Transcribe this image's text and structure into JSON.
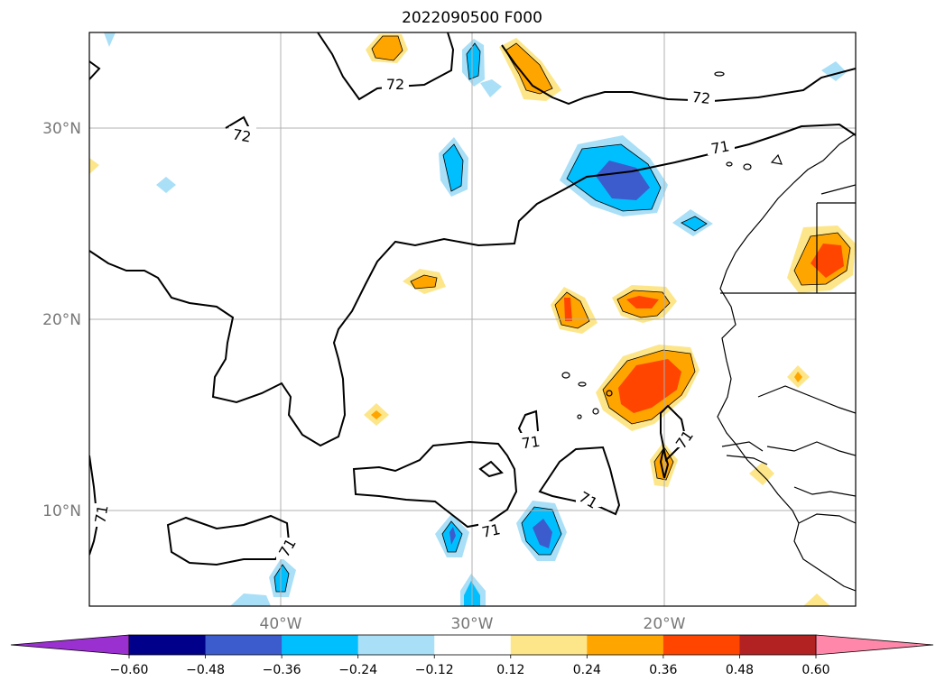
{
  "chart_data": {
    "type": "contour-map",
    "title": "2022090500 F000",
    "lon_labels": [
      "40°W",
      "30°W",
      "20°W"
    ],
    "lat_labels": [
      "30°N",
      "20°N",
      "10°N"
    ],
    "lon_range": [
      -50,
      -10
    ],
    "lat_range": [
      5,
      35
    ],
    "grid": true,
    "contour_lines": [
      {
        "value": 72,
        "labels": [
          "72",
          "72",
          "72"
        ]
      },
      {
        "value": 71,
        "labels": [
          "71",
          "71",
          "71",
          "71",
          "71",
          "71",
          "71"
        ]
      }
    ],
    "colorbar": {
      "orientation": "horizontal",
      "location": "bottom",
      "extend": "both",
      "ticks": [
        "−0.60",
        "−0.48",
        "−0.36",
        "−0.24",
        "−0.12",
        "0.12",
        "0.24",
        "0.36",
        "0.48",
        "0.60"
      ],
      "colors": [
        "#9b30d0",
        "#00008b",
        "#3c5ccd",
        "#00bfff",
        "#a9dff7",
        "#ffffff",
        "#fde68a",
        "#ffa500",
        "#ff4500",
        "#b22222",
        "#ff88aa"
      ]
    }
  }
}
